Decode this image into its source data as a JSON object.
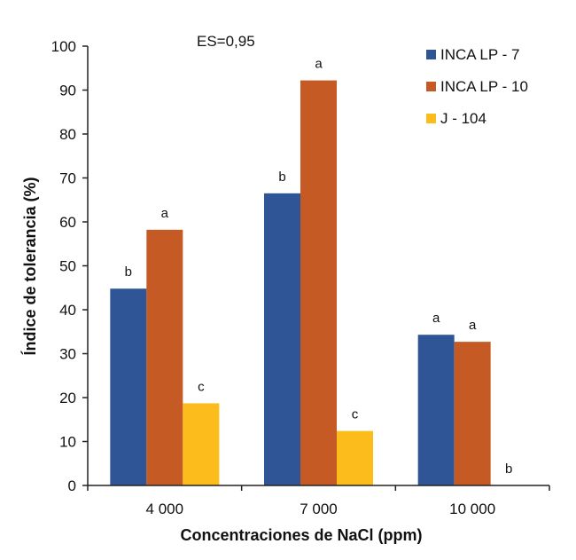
{
  "chart_data": {
    "type": "bar",
    "xlabel": "Concentraciones de NaCl (ppm)",
    "ylabel": "Índice de tolerancia (%)",
    "annotation": "ES=0,95",
    "ylim": [
      0,
      100
    ],
    "yticks": [
      "0",
      "10",
      "20",
      "30",
      "40",
      "50",
      "60",
      "70",
      "80",
      "90",
      "100"
    ],
    "categories": [
      "4 000",
      "7 000",
      "10 000"
    ],
    "legend_position": "top-right",
    "grid": false,
    "series": [
      {
        "name": "INCA LP - 7",
        "color": "#2f5597",
        "values": [
          44.8,
          66.5,
          34.3
        ],
        "labels": [
          "b",
          "b",
          "a"
        ]
      },
      {
        "name": "INCA LP - 10",
        "color": "#c55a24",
        "values": [
          58.2,
          92.2,
          32.7
        ],
        "labels": [
          "a",
          "a",
          "a"
        ]
      },
      {
        "name": "J - 104",
        "color": "#fbbc1c",
        "values": [
          18.7,
          12.4,
          0
        ],
        "labels": [
          "c",
          "c",
          "b"
        ]
      }
    ]
  }
}
